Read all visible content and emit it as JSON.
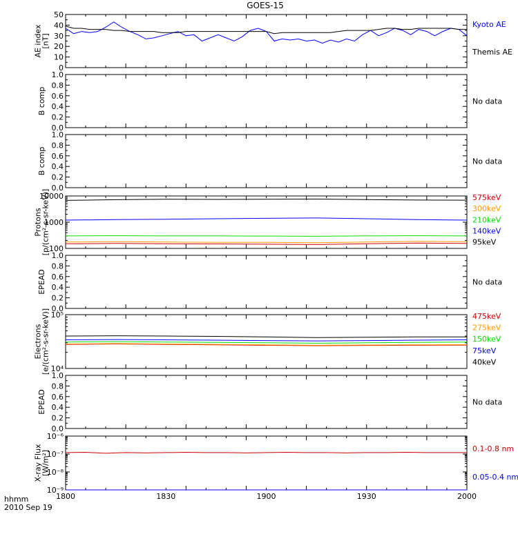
{
  "title": "GOES-15",
  "footer": {
    "unit_label": "hhmm",
    "date_label": "2010 Sep 19"
  },
  "x_axis": {
    "ticks": [
      "1800",
      "1830",
      "1900",
      "1930",
      "2000"
    ]
  },
  "colors": {
    "black": "#000000",
    "blue": "#0000ff",
    "green": "#00dd00",
    "orange": "#ff9900",
    "red": "#cc0000"
  },
  "chart_data": [
    {
      "type": "line",
      "ylabel": [
        "AE index",
        "[nT]"
      ],
      "ylim": [
        0,
        50
      ],
      "scale": "linear",
      "yticks": [
        "0",
        "10",
        "20",
        "30",
        "40",
        "50"
      ],
      "x_domain": [
        "1800",
        "2000"
      ],
      "series": [
        {
          "name": "Kyoto AE",
          "color": "#0000ff",
          "x": [
            0,
            4,
            8,
            12,
            16,
            20,
            24,
            28,
            32,
            36,
            40,
            44,
            48,
            52,
            56,
            60,
            64,
            68,
            72,
            76,
            80,
            84,
            88,
            92,
            96,
            100,
            104,
            108,
            112,
            116,
            120,
            124,
            128,
            132,
            136,
            140,
            144,
            148,
            152,
            156,
            160,
            164,
            168,
            172,
            176,
            180,
            184,
            188,
            192,
            196,
            200
          ],
          "values": [
            37,
            32,
            34,
            33,
            34,
            38,
            43,
            38,
            34,
            31,
            27,
            28,
            30,
            32,
            34,
            30,
            31,
            25,
            28,
            31,
            28,
            25,
            29,
            35,
            37,
            34,
            25,
            27,
            26,
            27,
            25,
            26,
            23,
            26,
            24,
            27,
            25,
            31,
            35,
            30,
            33,
            37,
            35,
            31,
            36,
            34,
            30,
            34,
            37,
            36,
            30
          ]
        },
        {
          "name": "Themis AE",
          "color": "#000000",
          "x": [
            0,
            4,
            8,
            12,
            16,
            20,
            24,
            28,
            32,
            36,
            40,
            44,
            48,
            52,
            56,
            60,
            64,
            68,
            72,
            76,
            80,
            84,
            88,
            92,
            96,
            100,
            104,
            108,
            112,
            116,
            120,
            124,
            128,
            132,
            136,
            140,
            144,
            148,
            152,
            156,
            160,
            164,
            168,
            172,
            176,
            180,
            184,
            188,
            192,
            196,
            200
          ],
          "values": [
            39,
            37,
            37,
            36,
            36,
            36,
            35,
            35,
            34,
            34,
            34,
            34,
            33,
            33,
            33,
            34,
            34,
            34,
            34,
            34,
            34,
            34,
            34,
            34,
            34,
            34,
            32,
            33,
            33,
            33,
            33,
            33,
            33,
            33,
            34,
            35,
            35,
            35,
            35,
            36,
            37,
            37,
            36,
            36,
            37,
            37,
            37,
            37,
            37,
            36,
            36
          ]
        }
      ]
    },
    {
      "type": "line",
      "ylabel": [
        "B comp"
      ],
      "ylim": [
        0,
        1
      ],
      "scale": "linear",
      "yticks": [
        "0.0",
        "0.2",
        "0.4",
        "0.6",
        "0.8",
        "1.0"
      ],
      "series": [],
      "note": "No data"
    },
    {
      "type": "line",
      "ylabel": [
        "B comp"
      ],
      "ylim": [
        0,
        1
      ],
      "scale": "linear",
      "yticks": [
        "0.0",
        "0.2",
        "0.4",
        "0.6",
        "0.8",
        "1.0"
      ],
      "series": [],
      "note": "No data"
    },
    {
      "type": "line",
      "ylabel": [
        "Protons",
        "[p/(cm²-s-sr-keV)]"
      ],
      "ylim": [
        100,
        10000
      ],
      "scale": "log",
      "yticks": [
        "100",
        "1000",
        "10000"
      ],
      "series": [
        {
          "name": "575keV",
          "color": "#cc0000",
          "x": [
            0,
            25,
            50,
            75,
            100,
            125,
            150,
            175,
            200
          ],
          "values": [
            150,
            155,
            150,
            148,
            145,
            140,
            150,
            160,
            155
          ]
        },
        {
          "name": "300keV",
          "color": "#ff9900",
          "x": [
            0,
            25,
            50,
            75,
            100,
            125,
            150,
            175,
            200
          ],
          "values": [
            175,
            180,
            175,
            170,
            170,
            165,
            175,
            185,
            180
          ]
        },
        {
          "name": "210keV",
          "color": "#00dd00",
          "x": [
            0,
            25,
            50,
            75,
            100,
            125,
            150,
            175,
            200
          ],
          "values": [
            300,
            305,
            300,
            300,
            295,
            290,
            300,
            305,
            300
          ]
        },
        {
          "name": "140keV",
          "color": "#0000ff",
          "x": [
            0,
            25,
            50,
            75,
            100,
            125,
            150,
            175,
            200
          ],
          "values": [
            1200,
            1250,
            1300,
            1350,
            1400,
            1450,
            1350,
            1250,
            1200
          ]
        },
        {
          "name": "95keV",
          "color": "#000000",
          "x": [
            0,
            25,
            50,
            75,
            100,
            125,
            150,
            175,
            200
          ],
          "values": [
            6800,
            7200,
            7500,
            7400,
            7500,
            7600,
            7300,
            7000,
            6900
          ]
        }
      ]
    },
    {
      "type": "line",
      "ylabel": [
        "EPEAD"
      ],
      "ylim": [
        0,
        1
      ],
      "scale": "linear",
      "yticks": [
        "0.0",
        "0.2",
        "0.4",
        "0.6",
        "0.8",
        "1.0"
      ],
      "series": [],
      "note": "No data"
    },
    {
      "type": "line",
      "ylabel": [
        "Electrons",
        "[e/(cm²-s-sr-keV)]"
      ],
      "ylim": [
        10000,
        100000
      ],
      "scale": "log",
      "yticks": [
        "10⁴",
        "10⁵"
      ],
      "series": [
        {
          "name": "475keV",
          "color": "#cc0000",
          "x": [
            0,
            25,
            50,
            75,
            100,
            125,
            150,
            175,
            200
          ],
          "values": [
            28000,
            28500,
            28000,
            27500,
            27000,
            26500,
            26800,
            27000,
            27200
          ]
        },
        {
          "name": "275keV",
          "color": "#ff9900",
          "x": [
            0,
            25,
            50,
            75,
            100,
            125,
            150,
            175,
            200
          ],
          "values": [
            28500,
            29000,
            28500,
            28000,
            27500,
            27000,
            27300,
            27500,
            27700
          ]
        },
        {
          "name": "150keV",
          "color": "#00dd00",
          "x": [
            0,
            25,
            50,
            75,
            100,
            125,
            150,
            175,
            200
          ],
          "values": [
            31000,
            31500,
            31000,
            30500,
            30000,
            29500,
            30000,
            30500,
            31000
          ]
        },
        {
          "name": "75keV",
          "color": "#0000ff",
          "x": [
            0,
            25,
            50,
            75,
            100,
            125,
            150,
            175,
            200
          ],
          "values": [
            34000,
            34500,
            34000,
            33500,
            33000,
            32500,
            33000,
            33500,
            34000
          ]
        },
        {
          "name": "40keV",
          "color": "#000000",
          "x": [
            0,
            25,
            50,
            75,
            100,
            125,
            150,
            175,
            200
          ],
          "values": [
            40000,
            40500,
            40000,
            39500,
            38500,
            37500,
            38000,
            38500,
            38500
          ]
        }
      ]
    },
    {
      "type": "line",
      "ylabel": [
        "EPEAD"
      ],
      "ylim": [
        0,
        1
      ],
      "scale": "linear",
      "yticks": [
        "0.0",
        "0.2",
        "0.4",
        "0.6",
        "0.8",
        "1.0"
      ],
      "series": [],
      "note": "No data"
    },
    {
      "type": "line",
      "ylabel": [
        "X-ray Flux",
        "[W/m²]"
      ],
      "ylim": [
        1e-09,
        1e-06
      ],
      "scale": "log",
      "yticks": [
        "10⁻⁹",
        "10⁻⁸",
        "10⁻⁷",
        "10⁻⁶"
      ],
      "series": [
        {
          "name": "0.1-0.8 nm",
          "color": "#cc0000",
          "x": [
            0,
            10,
            20,
            30,
            40,
            50,
            60,
            70,
            80,
            90,
            100,
            110,
            120,
            130,
            140,
            150,
            160,
            170,
            180,
            190,
            200
          ],
          "values": [
            1.2e-07,
            1.25e-07,
            1.1e-07,
            1.2e-07,
            1.15e-07,
            1.2e-07,
            1.25e-07,
            1.2e-07,
            1.2e-07,
            1.15e-07,
            1.2e-07,
            1.25e-07,
            1.2e-07,
            1.2e-07,
            1.15e-07,
            1.2e-07,
            1.2e-07,
            1.25e-07,
            1.2e-07,
            1.2e-07,
            1.2e-07
          ]
        },
        {
          "name": "0.05-0.4 nm",
          "color": "#0000ff",
          "x": [
            0,
            20,
            40,
            60,
            80,
            100,
            120,
            140,
            160,
            180,
            200
          ],
          "values": [
            1e-09,
            1e-09,
            1e-09,
            1e-09,
            1e-09,
            1e-09,
            1e-09,
            1e-09,
            1e-09,
            1e-09,
            1e-09
          ]
        }
      ]
    }
  ]
}
